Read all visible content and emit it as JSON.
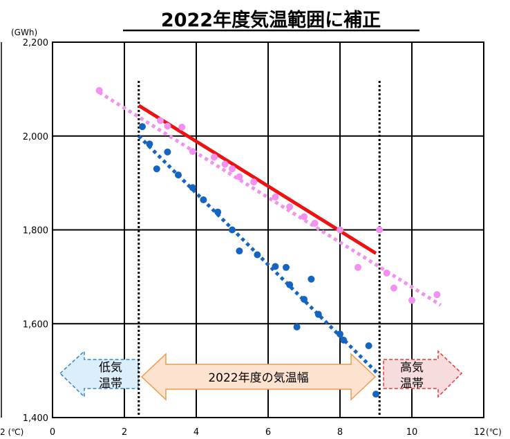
{
  "chart_data": {
    "type": "scatter",
    "title": "2022年度気温範囲に補正",
    "y_unit": "(GWh)",
    "x_unit_left": "2 (℃)",
    "x_unit_right": "(℃)",
    "xlim": [
      0,
      12
    ],
    "ylim": [
      1400,
      2200
    ],
    "x_ticks": [
      0,
      2,
      4,
      6,
      8,
      10,
      12
    ],
    "y_ticks": [
      1400,
      1600,
      1800,
      2000,
      2200
    ],
    "y_tick_labels": [
      "1,400",
      "1,600",
      "1,800",
      "2,000",
      "2,200"
    ],
    "grid": true,
    "colors": {
      "pink": "#f391ee",
      "blue": "#1565c0",
      "red": "#ee1111",
      "low_band_fill": "#dceef9",
      "low_band_stroke": "#2e86d1",
      "mid_band_fill": "#fde3cf",
      "mid_band_stroke": "#ef9a4a",
      "high_band_fill": "#f6dcdc",
      "high_band_stroke": "#e53935"
    },
    "series": [
      {
        "color": "pink",
        "points": [
          [
            1.3,
            2097
          ],
          [
            3.0,
            2033
          ],
          [
            3.2,
            2021
          ],
          [
            3.6,
            2019
          ],
          [
            3.9,
            1967
          ],
          [
            4.5,
            1955
          ],
          [
            4.8,
            1940
          ],
          [
            5.0,
            1930
          ],
          [
            5.2,
            1913
          ],
          [
            5.6,
            1902
          ],
          [
            6.2,
            1870
          ],
          [
            6.6,
            1849
          ],
          [
            7.0,
            1828
          ],
          [
            7.3,
            1814
          ],
          [
            8.0,
            1800
          ],
          [
            8.5,
            1720
          ],
          [
            9.1,
            1800
          ],
          [
            9.3,
            1708
          ],
          [
            9.5,
            1676
          ],
          [
            10.0,
            1650
          ],
          [
            10.7,
            1662
          ]
        ],
        "trend": [
          [
            1.3,
            2093
          ],
          [
            10.8,
            1640
          ]
        ]
      },
      {
        "color": "blue",
        "points": [
          [
            2.5,
            2020
          ],
          [
            2.7,
            1983
          ],
          [
            2.9,
            1930
          ],
          [
            3.2,
            1966
          ],
          [
            3.5,
            1917
          ],
          [
            3.9,
            1890
          ],
          [
            4.2,
            1864
          ],
          [
            4.6,
            1838
          ],
          [
            5.0,
            1800
          ],
          [
            5.2,
            1755
          ],
          [
            5.7,
            1747
          ],
          [
            6.2,
            1722
          ],
          [
            6.5,
            1720
          ],
          [
            6.6,
            1683
          ],
          [
            6.8,
            1593
          ],
          [
            7.0,
            1652
          ],
          [
            7.2,
            1695
          ],
          [
            7.4,
            1620
          ],
          [
            8.0,
            1578
          ],
          [
            8.1,
            1565
          ],
          [
            8.8,
            1553
          ],
          [
            9.0,
            1450
          ]
        ],
        "trend": [
          [
            2.4,
            2000
          ],
          [
            9.1,
            1490
          ]
        ]
      },
      {
        "color": "red",
        "trend": [
          [
            2.4,
            2065
          ],
          [
            9.0,
            1750
          ]
        ]
      }
    ],
    "vlines": [
      2.4,
      9.1
    ],
    "bands": {
      "low": [
        "低気",
        "温帯"
      ],
      "mid": "2022年度の気温幅",
      "high": [
        "高気",
        "温帯"
      ]
    }
  }
}
